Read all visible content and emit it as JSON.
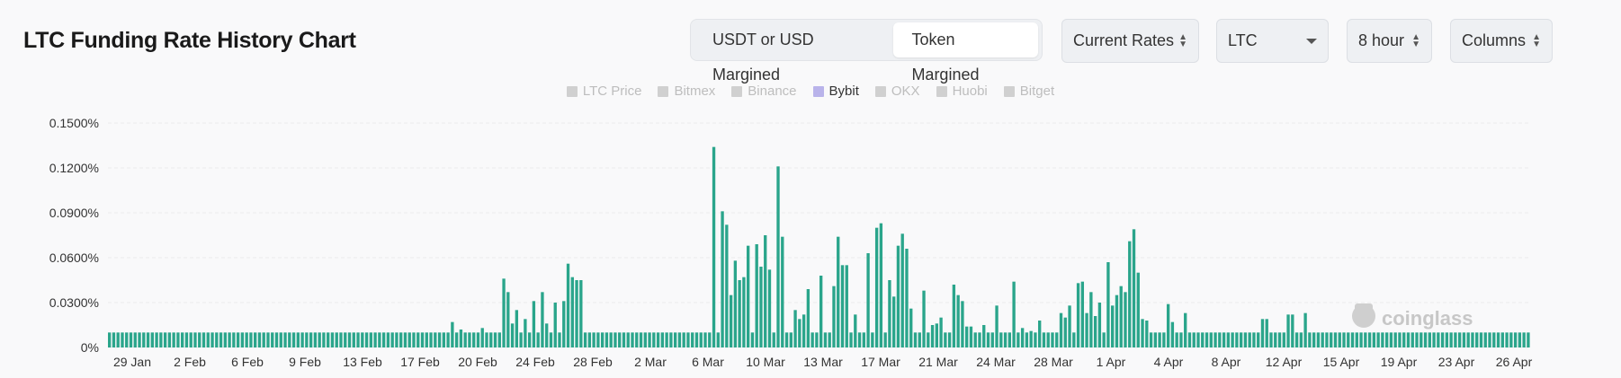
{
  "title": "LTC Funding Rate History Chart",
  "margin_toggle": {
    "options": [
      "USDT or USD Margined",
      "Token Margined"
    ],
    "active": "Token Margined"
  },
  "selects": {
    "rates": "Current Rates",
    "coin": "LTC",
    "interval": "8 hour",
    "chart_style": "Columns"
  },
  "watermark": "coinglass",
  "colors": {
    "bar": "#2aa58b",
    "legend_active": "#b9b3ea",
    "legend_inactive": "#d0d0d0",
    "grid": "#ececec"
  },
  "chart_data": {
    "type": "bar",
    "title": "LTC Funding Rate History Chart",
    "legend": [
      {
        "name": "LTC Price",
        "active": false
      },
      {
        "name": "Bitmex",
        "active": false
      },
      {
        "name": "Binance",
        "active": false
      },
      {
        "name": "Bybit",
        "active": true
      },
      {
        "name": "OKX",
        "active": false
      },
      {
        "name": "Huobi",
        "active": false
      },
      {
        "name": "Bitget",
        "active": false
      }
    ],
    "legend_position": "top-center",
    "grid": true,
    "ylim": [
      0,
      0.15
    ],
    "y_unit": "%",
    "y_ticks": [
      "0%",
      "0.0300%",
      "0.0600%",
      "0.0900%",
      "0.1200%",
      "0.1500%"
    ],
    "x_ticks": [
      "29 Jan",
      "2 Feb",
      "6 Feb",
      "9 Feb",
      "13 Feb",
      "17 Feb",
      "20 Feb",
      "24 Feb",
      "28 Feb",
      "2 Mar",
      "6 Mar",
      "10 Mar",
      "13 Mar",
      "17 Mar",
      "21 Mar",
      "24 Mar",
      "28 Mar",
      "1 Apr",
      "4 Apr",
      "8 Apr",
      "12 Apr",
      "15 Apr",
      "19 Apr",
      "23 Apr",
      "26 Apr"
    ],
    "series": [
      {
        "name": "Bybit",
        "values": [
          0.01,
          0.01,
          0.01,
          0.01,
          0.01,
          0.01,
          0.01,
          0.01,
          0.01,
          0.01,
          0.01,
          0.01,
          0.01,
          0.01,
          0.01,
          0.01,
          0.01,
          0.01,
          0.01,
          0.01,
          0.01,
          0.01,
          0.01,
          0.01,
          0.01,
          0.01,
          0.01,
          0.01,
          0.01,
          0.01,
          0.01,
          0.01,
          0.01,
          0.01,
          0.01,
          0.01,
          0.01,
          0.01,
          0.01,
          0.01,
          0.01,
          0.01,
          0.01,
          0.01,
          0.01,
          0.01,
          0.01,
          0.01,
          0.01,
          0.01,
          0.01,
          0.01,
          0.01,
          0.01,
          0.01,
          0.01,
          0.01,
          0.01,
          0.01,
          0.01,
          0.01,
          0.01,
          0.01,
          0.01,
          0.01,
          0.01,
          0.01,
          0.01,
          0.01,
          0.01,
          0.01,
          0.01,
          0.01,
          0.01,
          0.01,
          0.01,
          0.01,
          0.01,
          0.01,
          0.01,
          0.017,
          0.01,
          0.012,
          0.01,
          0.01,
          0.01,
          0.01,
          0.013,
          0.01,
          0.01,
          0.01,
          0.01,
          0.046,
          0.037,
          0.016,
          0.025,
          0.01,
          0.019,
          0.01,
          0.031,
          0.01,
          0.037,
          0.016,
          0.01,
          0.03,
          0.01,
          0.031,
          0.056,
          0.047,
          0.045,
          0.045,
          0.01,
          0.01,
          0.01,
          0.01,
          0.01,
          0.01,
          0.01,
          0.01,
          0.01,
          0.01,
          0.01,
          0.01,
          0.01,
          0.01,
          0.01,
          0.01,
          0.01,
          0.01,
          0.01,
          0.01,
          0.01,
          0.01,
          0.01,
          0.01,
          0.01,
          0.01,
          0.01,
          0.01,
          0.01,
          0.01,
          0.134,
          0.01,
          0.091,
          0.082,
          0.035,
          0.058,
          0.045,
          0.047,
          0.068,
          0.01,
          0.069,
          0.054,
          0.075,
          0.052,
          0.01,
          0.121,
          0.074,
          0.01,
          0.01,
          0.025,
          0.019,
          0.022,
          0.039,
          0.01,
          0.01,
          0.048,
          0.01,
          0.01,
          0.041,
          0.074,
          0.055,
          0.055,
          0.01,
          0.022,
          0.01,
          0.01,
          0.063,
          0.01,
          0.08,
          0.083,
          0.01,
          0.045,
          0.034,
          0.068,
          0.076,
          0.066,
          0.026,
          0.01,
          0.01,
          0.038,
          0.01,
          0.015,
          0.016,
          0.02,
          0.01,
          0.01,
          0.042,
          0.035,
          0.031,
          0.014,
          0.014,
          0.01,
          0.01,
          0.015,
          0.01,
          0.01,
          0.028,
          0.01,
          0.01,
          0.01,
          0.044,
          0.01,
          0.013,
          0.01,
          0.011,
          0.01,
          0.018,
          0.01,
          0.01,
          0.01,
          0.01,
          0.023,
          0.02,
          0.028,
          0.01,
          0.043,
          0.044,
          0.023,
          0.037,
          0.021,
          0.03,
          0.01,
          0.057,
          0.028,
          0.035,
          0.041,
          0.037,
          0.071,
          0.079,
          0.05,
          0.019,
          0.018,
          0.01,
          0.01,
          0.01,
          0.01,
          0.029,
          0.017,
          0.01,
          0.01,
          0.023,
          0.01,
          0.01,
          0.01,
          0.01,
          0.01,
          0.01,
          0.01,
          0.01,
          0.01,
          0.01,
          0.01,
          0.01,
          0.01,
          0.01,
          0.01,
          0.01,
          0.01,
          0.019,
          0.019,
          0.01,
          0.01,
          0.01,
          0.01,
          0.022,
          0.022,
          0.01,
          0.01,
          0.023,
          0.01,
          0.01,
          0.01,
          0.01,
          0.01,
          0.01,
          0.01,
          0.01,
          0.01,
          0.01,
          0.01,
          0.01,
          0.01,
          0.01,
          0.01,
          0.01,
          0.01,
          0.01,
          0.01,
          0.01,
          0.01,
          0.01,
          0.01,
          0.01,
          0.01,
          0.01,
          0.01,
          0.01,
          0.01,
          0.01,
          0.01,
          0.01,
          0.01,
          0.01,
          0.01,
          0.01,
          0.01,
          0.01,
          0.01,
          0.01,
          0.01,
          0.01,
          0.01,
          0.01,
          0.01,
          0.01,
          0.01,
          0.01,
          0.01,
          0.01,
          0.01,
          0.01
        ]
      }
    ]
  }
}
